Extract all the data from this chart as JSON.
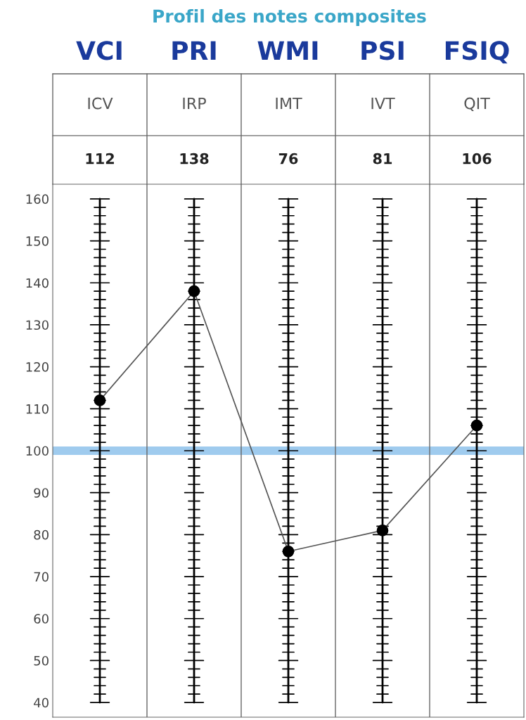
{
  "chart_data": {
    "type": "line",
    "title": "Profil des notes composites",
    "categories": [
      "ICV",
      "IRP",
      "IMT",
      "IVT",
      "QIT"
    ],
    "series": [
      {
        "color": "#555555",
        "values": [
          112,
          138,
          76,
          81,
          106
        ]
      }
    ],
    "marker": "circle",
    "data_labels": true,
    "ylim": [
      36.5,
      163.5
    ],
    "yticks": [
      40,
      50,
      60,
      70,
      80,
      90,
      100,
      110,
      120,
      130,
      140,
      150,
      160
    ],
    "grid": "x",
    "bands": [
      {
        "axis": "y",
        "from": 99,
        "to": 101,
        "color": "#9fcbee"
      }
    ],
    "annotations": [
      "VCI",
      "PRI",
      "WMI",
      "PSI",
      "FSIQ"
    ]
  }
}
